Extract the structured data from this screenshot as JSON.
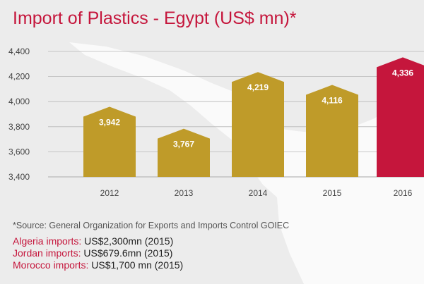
{
  "title": "Import of Plastics - Egypt (US$ mn)*",
  "chart_data": {
    "type": "bar",
    "title": "Import of Plastics - Egypt (US$ mn)*",
    "categories": [
      "2012",
      "2013",
      "2014",
      "2015",
      "2016"
    ],
    "values": [
      3942,
      3767,
      4219,
      4116,
      4336
    ],
    "value_labels": [
      "3,942",
      "3,767",
      "4,219",
      "4,116",
      "4,336"
    ],
    "yticks": [
      3400,
      3600,
      3800,
      4000,
      4200,
      4400
    ],
    "ytick_labels": [
      "3,400",
      "3,600",
      "3,800",
      "4,000",
      "4,200",
      "4,400"
    ],
    "ylim": [
      3400,
      4450
    ],
    "xlabel": "",
    "ylabel": "",
    "grid": true,
    "colors": {
      "bar": "#bf9b29",
      "highlight": "#c5163c",
      "grid": "#b8b8b8",
      "value_text": "#ffffff",
      "tick_text": "#444444"
    },
    "highlight_index": 4
  },
  "source": "*Source: General Organization for Exports and Imports Control GOIEC",
  "imports": [
    {
      "label": "Algeria imports:",
      "value": "US$2,300mn (2015)"
    },
    {
      "label": "Jordan imports:",
      "value": "US$679.6mn (2015)"
    },
    {
      "label": "Morocco  imports:",
      "value": "US$1,700 mn (2015)"
    }
  ]
}
